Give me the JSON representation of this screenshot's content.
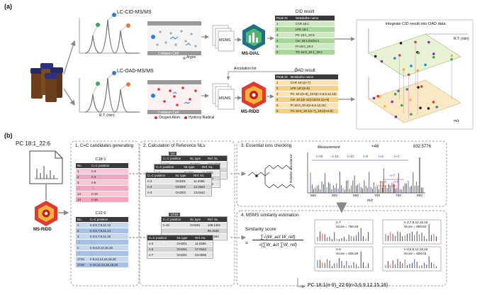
{
  "panel_a": {
    "label": "(a)",
    "cid_method": "LC-CID-MS/MS",
    "oad_method": "LC-OAD-MS/MS",
    "rt_axis": "R.T. (min)",
    "argon_legend": "Argon",
    "collision_cell": "Collision Cell",
    "oxygen_legend": "Oxygen Atom",
    "hydroxy_legend": "Hydroxy Radical",
    "msms_label": "MS/MS",
    "msdial": "MS-DIAL",
    "msridd": "MS-RIDD",
    "annotation_list": "Annotation list",
    "cid_title": "CID result",
    "cid_headers": [
      "Peak ID",
      "Metabolite name"
    ],
    "cid_rows": [
      [
        "1",
        "CAR 18:1"
      ],
      [
        "2",
        "LPE 18:1"
      ],
      [
        "3",
        "PC 18:1_22:5"
      ],
      [
        "4",
        "Cer 18:1;O2/24:1"
      ],
      [
        "5",
        "PI 18:0_20:4"
      ],
      [
        "6",
        "TG 16:0_18:1_18:2"
      ]
    ],
    "oad_title": "OAD result",
    "oad_headers": [
      "Peak ID",
      "Metabolite name"
    ],
    "oad_rows": [
      [
        "1",
        "CAR 18:1(n-7)"
      ],
      [
        "2",
        "LPE 18:1(n-9)"
      ],
      [
        "3",
        "PC 18:1(n-9)_22:5(n-3,6,9,12,15)"
      ],
      [
        "4",
        "Cer 18:1(n-14);O2/24:1(n-9)"
      ],
      [
        "5",
        "PI 18:0_20:4(n-6,9,12,15)"
      ],
      [
        "6",
        "TG 16:0_18:1(n-7)_18:2(n-6,9)"
      ]
    ],
    "integrate_title": "Integrate CID result into OAD data",
    "axis_rt": "R.T. (min)",
    "axis_mz": "m/z"
  },
  "panel_b": {
    "label": "(b)",
    "lipid_name": "PC 18:1_22:6",
    "msridd": "MS-RIDD",
    "step1_title": "1. C=C candidates generating",
    "c181_title": "C18:1",
    "c181_headers": [
      "No.",
      "C=C position"
    ],
    "c181_rows": [
      [
        "1",
        "n-3"
      ],
      [
        "2",
        "n-4"
      ],
      [
        "3",
        "n-5"
      ],
      [
        "⋮",
        "⋮"
      ],
      [
        "13",
        "n-15"
      ],
      [
        "14",
        "n-16"
      ]
    ],
    "c226_title": "C22:6",
    "c226_headers": [
      "No.",
      "C=C position"
    ],
    "c226_rows": [
      [
        "1",
        "n-3,5,7,9,11,13"
      ],
      [
        "2",
        "n-3,5,7,9,11,14"
      ],
      [
        "3",
        "n-3,5,7,9,11,15"
      ],
      [
        "⋮",
        "⋮"
      ],
      [
        "n",
        "n-3,6,9,12,15,18"
      ],
      [
        "⋮",
        "⋮"
      ],
      [
        "1715",
        "n-9,12,14,16,18,20"
      ],
      [
        "1716",
        "n-10,12,14,16,18,20"
      ]
    ],
    "step2_title": "2. Calculation of Reference NLs",
    "ref_headers": [
      "C=C position",
      "NL type",
      "Ref. NL"
    ],
    "ref_top_tab": "14",
    "ref_top_rows": [
      [
        "n-16",
        "OAD01",
        "193.2320"
      ],
      [
        "",
        "",
        "194.2398"
      ],
      [
        "",
        "",
        "180.2242"
      ]
    ],
    "ref_top_back_rows": [
      [
        "n-3",
        "OAD01",
        "11.0286"
      ],
      [
        "n-3",
        "OAD02",
        "12.0364"
      ],
      [
        "n-3",
        "OAD03",
        "13.0442"
      ]
    ],
    "ref_top_front_rows": [
      [
        "n-3",
        "OAD01",
        "11.0286"
      ],
      [
        "n-3",
        "OAD02",
        "12.0364"
      ],
      [
        "n-3",
        "OAD03",
        "13.0442"
      ]
    ],
    "ref_bot_tab": "1716",
    "ref_bot_rows": [
      [
        "n-10",
        "OAD01",
        "109.1381"
      ],
      [
        "",
        "",
        "95.1538"
      ],
      [
        "",
        "",
        "91.1694"
      ]
    ],
    "ref_bot_front_rows": [
      [
        "n-3",
        "OAD01",
        "11.0286"
      ],
      [
        "n-5",
        "OAD01",
        "37.0442"
      ],
      [
        "n-7",
        "OAD01",
        "63.0598"
      ]
    ],
    "step3_title": "3. Essential ions checking",
    "measurement": "Measurement",
    "zoom": "×46",
    "precursor": "832.5776",
    "ylabel": "Relative abundance",
    "xlabel": "m/z",
    "x_ticks": [
      "550",
      "600",
      "650",
      "700",
      "750",
      "800"
    ],
    "blue_labels": [
      "n-18",
      "n-15",
      "n-12",
      "n-9",
      "n-6",
      "n-3"
    ],
    "red_labels": [
      "n-9",
      "n-7"
    ],
    "purple_label": "n-7",
    "step4_title": "4. MSMS similarity estimation",
    "sim_title": "Similarity score",
    "sim_eq": "=",
    "sim_num": "∑√(W_act W_ref)",
    "sim_den": "√(∑W_act ∑W_ref)",
    "mini": [
      {
        "name": "n-7",
        "score": "Score = 766.49"
      },
      {
        "name": "n-3,7,9,12,15,18",
        "score": "Score = 869.50"
      },
      {
        "name": "n-9",
        "score": "Score = 935.99"
      },
      {
        "name": "n-3,6,9,12,15,18",
        "score": "Score = 938.03"
      }
    ],
    "final": "PC 18:1(n-9)_22:6(n-3,6,9,12,15,18)"
  }
}
